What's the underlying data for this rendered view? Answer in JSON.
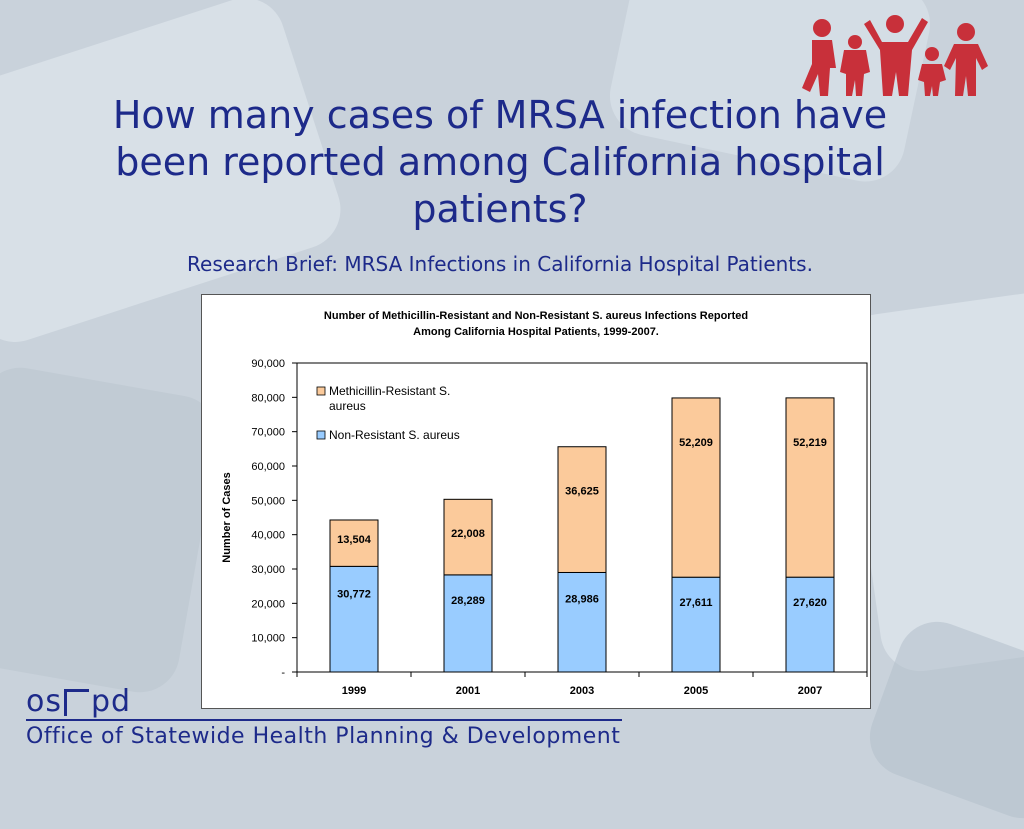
{
  "slide": {
    "title": "How many cases of MRSA infection have been reported among California hospital patients?",
    "subtitle": "Research Brief: MRSA Infections in California Hospital Patients."
  },
  "footer": {
    "logo_left": "os",
    "logo_right": "pd",
    "org_name": "Office of Statewide Health Planning & Development"
  },
  "colors": {
    "title": "#1d2a8a",
    "mrsa": "#fbca9b",
    "non_resistant": "#99ccff",
    "logo_people": "#c8303a"
  },
  "chart_data": {
    "type": "bar",
    "stacked": true,
    "title_lines": [
      "Number of Methicillin-Resistant and Non-Resistant S. aureus Infections Reported",
      "Among California Hospital Patients, 1999-2007."
    ],
    "xlabel": "",
    "ylabel": "Number of Cases",
    "ylim": [
      0,
      90000
    ],
    "yticks": [
      "-",
      "10,000",
      "20,000",
      "30,000",
      "40,000",
      "50,000",
      "60,000",
      "70,000",
      "80,000",
      "90,000"
    ],
    "categories": [
      "1999",
      "2001",
      "2003",
      "2005",
      "2007"
    ],
    "legend_position": "top-left",
    "grid": false,
    "series": [
      {
        "name": "Non-Resistant S. aureus",
        "color": "#99ccff",
        "values": [
          30772,
          28289,
          28986,
          27611,
          27620
        ],
        "labels": [
          "30,772",
          "28,289",
          "28,986",
          "27,611",
          "27,620"
        ]
      },
      {
        "name": "Methicillin-Resistant S. aureus",
        "legend_lines": [
          "Methicillin-Resistant S.",
          "aureus"
        ],
        "color": "#fbca9b",
        "values": [
          13504,
          22008,
          36625,
          52209,
          52219
        ],
        "labels": [
          "13,504",
          "22,008",
          "36,625",
          "52,209",
          "52,219"
        ]
      }
    ]
  }
}
